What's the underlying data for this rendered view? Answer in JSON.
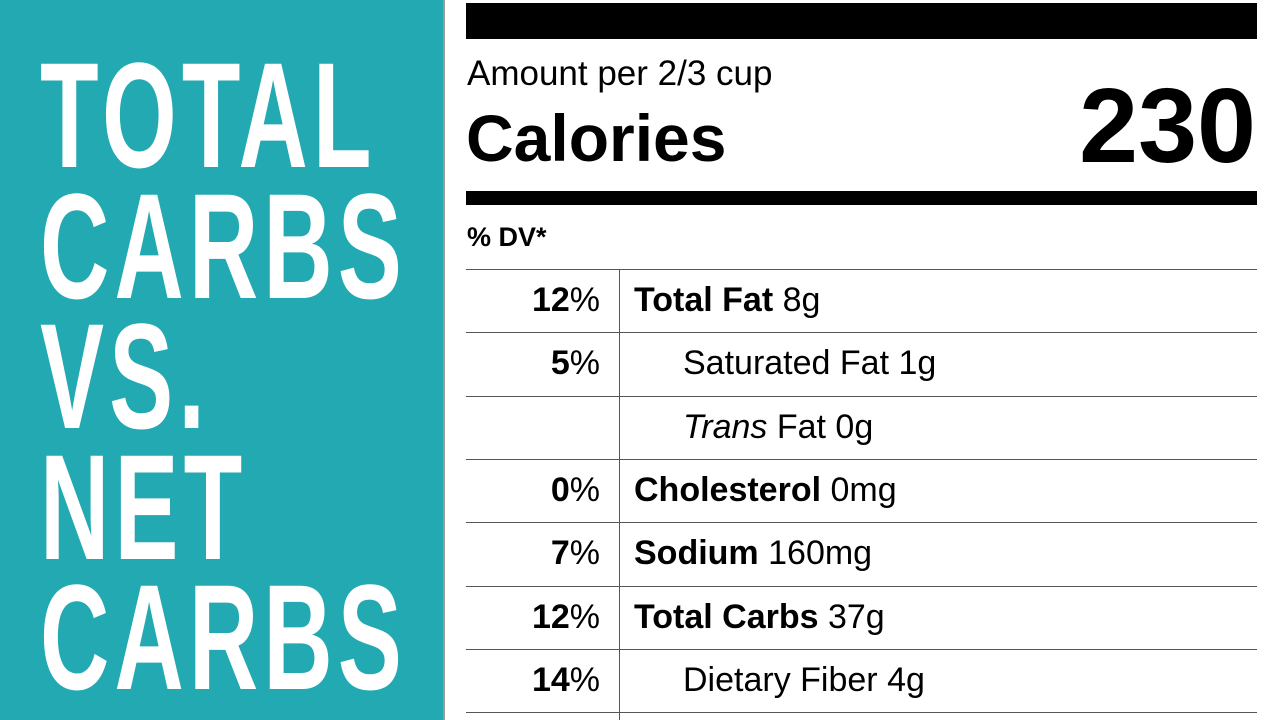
{
  "title_lines": [
    "TOTAL",
    "CARBS",
    "VS.",
    "NET",
    "CARBS"
  ],
  "label": {
    "amount": "Amount per 2/3 cup",
    "calories_label": "Calories",
    "calories_value": "230",
    "dv_header": "% DV*",
    "rows": [
      {
        "dv": "12",
        "dv_unit": "%",
        "name": "Total Fat",
        "amount": "8g",
        "indent": false
      },
      {
        "dv": "5",
        "dv_unit": "%",
        "name": "Saturated Fat",
        "amount": "1g",
        "indent": true
      },
      {
        "name_prefix": "Trans",
        "name": "Fat",
        "amount": "0g",
        "indent": true
      },
      {
        "dv": "0",
        "dv_unit": "%",
        "name": "Cholesterol",
        "amount": "0mg",
        "indent": false
      },
      {
        "dv": "7",
        "dv_unit": "%",
        "name": "Sodium",
        "amount": "160mg",
        "indent": false
      },
      {
        "dv": "12",
        "dv_unit": "%",
        "name": "Total Carbs",
        "amount": "37g",
        "indent": false
      },
      {
        "dv": "14",
        "dv_unit": "%",
        "name": "Dietary Fiber",
        "amount": "4g",
        "indent": true
      }
    ]
  }
}
